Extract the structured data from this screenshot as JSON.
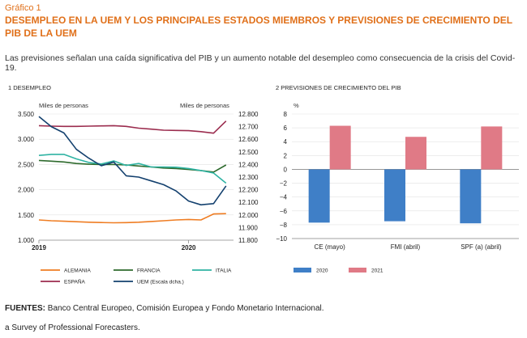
{
  "figure": {
    "label": "Gráfico 1",
    "title": "DESEMPLEO EN LA UEM Y LOS PRINCIPALES ESTADOS MIEMBROS Y PREVISIONES DE CRECIMIENTO DEL PIB DE LA UEM",
    "subtitle": "Las previsiones señalan una caída significativa del PIB y un aumento notable del desempleo como consecuencia de la crisis del Covid-19."
  },
  "footer": {
    "sources_label": "FUENTES:",
    "sources_text": "Banco Central Europeo, Comisión Europea y Fondo Monetario Internacional.",
    "note": "a  Survey of Professional Forecasters."
  },
  "colors": {
    "title": "#e0701a",
    "ALEMANIA": "#ef7d23",
    "FRANCIA": "#2e6a2d",
    "ITALIA": "#2fb3a3",
    "ESPAÑA": "#9b2c4e",
    "UEM": "#13406e",
    "bar2020": "#3f7fc7",
    "bar2021": "#e07a86"
  },
  "chart_data": [
    {
      "type": "line",
      "panel_title": "1  DESEMPLEO",
      "ylabel_left": "Miles de personas",
      "ylabel_right": "Miles de personas",
      "ylim": [
        1000,
        3500
      ],
      "ylim_right": [
        11800,
        12800
      ],
      "y_ticks_left": [
        "1.000",
        "1.500",
        "2.000",
        "2.500",
        "3.000",
        "3.500"
      ],
      "y_ticks_right": [
        "11.800",
        "11.900",
        "12.000",
        "12.100",
        "12.200",
        "12.300",
        "12.400",
        "12.500",
        "12.600",
        "12.700",
        "12.800"
      ],
      "x_tick_labels": [
        "2019",
        "2020"
      ],
      "x": [
        2019.0,
        2019.083,
        2019.167,
        2019.25,
        2019.333,
        2019.417,
        2019.5,
        2019.583,
        2019.667,
        2019.75,
        2019.833,
        2019.917,
        2020.0,
        2020.083,
        2020.167,
        2020.25
      ],
      "xlim": [
        2019.0,
        2020.3
      ],
      "grid": true,
      "legend_position": "bottom",
      "series": [
        {
          "name": "ALEMANIA",
          "axis": "left",
          "values": [
            1400,
            1385,
            1375,
            1365,
            1355,
            1350,
            1345,
            1348,
            1355,
            1370,
            1385,
            1400,
            1410,
            1400,
            1520,
            1525
          ]
        },
        {
          "name": "FRANCIA",
          "axis": "left",
          "values": [
            2580,
            2565,
            2550,
            2520,
            2505,
            2500,
            2500,
            2490,
            2470,
            2450,
            2430,
            2420,
            2400,
            2380,
            2350,
            2490
          ]
        },
        {
          "name": "ITALIA",
          "axis": "left",
          "values": [
            2680,
            2700,
            2700,
            2610,
            2540,
            2510,
            2570,
            2480,
            2520,
            2450,
            2450,
            2445,
            2420,
            2380,
            2330,
            2130
          ]
        },
        {
          "name": "ESPAÑA",
          "axis": "left",
          "values": [
            3270,
            3260,
            3255,
            3255,
            3260,
            3265,
            3270,
            3255,
            3220,
            3200,
            3180,
            3175,
            3170,
            3150,
            3120,
            3360
          ]
        },
        {
          "name": "UEM (Escala dcha.)",
          "axis": "right",
          "values": [
            12780,
            12700,
            12650,
            12520,
            12450,
            12390,
            12420,
            12310,
            12300,
            12270,
            12240,
            12190,
            12110,
            12080,
            12090,
            12230
          ]
        }
      ]
    },
    {
      "type": "bar",
      "panel_title": "2  PREVISIONES DE CRECIMIENTO DEL PIB",
      "ylabel": "%",
      "ylim": [
        -10,
        8
      ],
      "y_ticks": [
        "−10",
        "−8",
        "−6",
        "−4",
        "−2",
        "0",
        "2",
        "4",
        "6",
        "8"
      ],
      "categories": [
        "CE (mayo)",
        "FMI (abril)",
        "SPF (a) (abril)"
      ],
      "grid": true,
      "legend_position": "bottom",
      "series": [
        {
          "name": "2020",
          "values": [
            -7.7,
            -7.5,
            -7.8
          ]
        },
        {
          "name": "2021",
          "values": [
            6.3,
            4.7,
            6.2
          ]
        }
      ]
    }
  ]
}
